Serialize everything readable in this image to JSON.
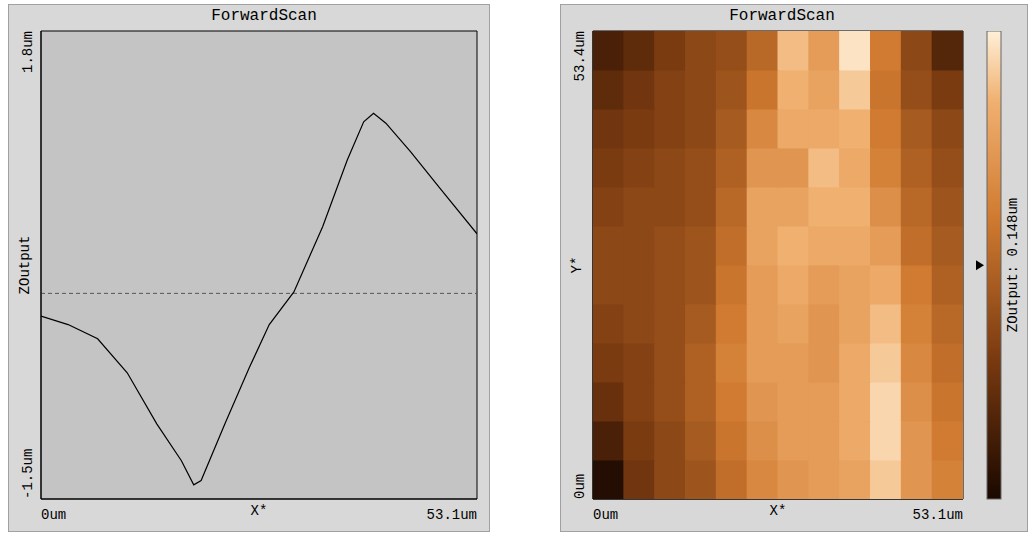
{
  "chart_data": [
    {
      "type": "line",
      "title": "ForwardScan",
      "x_label": "X*",
      "y_label": "ZOutput",
      "color": "#000000",
      "grid": false,
      "x": [
        0,
        3.3,
        6.9,
        10.5,
        14.1,
        17.1,
        18.6,
        19.5,
        22.4,
        25.4,
        27.8,
        30.8,
        34.3,
        37.3,
        39.3,
        40.5,
        42.0,
        45.0,
        48.6,
        53.1
      ],
      "values": [
        -0.21,
        -0.27,
        -0.37,
        -0.61,
        -0.97,
        -1.23,
        -1.4,
        -1.37,
        -0.97,
        -0.57,
        -0.27,
        -0.04,
        0.42,
        0.89,
        1.16,
        1.22,
        1.15,
        0.95,
        0.69,
        0.37
      ],
      "xlim": [
        0,
        53.1
      ],
      "xticks": [
        {
          "value": 0,
          "label": "0um"
        },
        {
          "value": 53.1,
          "label": "53.1um"
        }
      ],
      "ylim": [
        -1.5,
        1.8
      ],
      "yticks": [
        {
          "value": -1.5,
          "label": "-1.5um"
        },
        {
          "value": 1.8,
          "label": "1.8um"
        }
      ],
      "reference_line": -0.05
    },
    {
      "type": "heatmap",
      "title": "ForwardScan",
      "x_label": "X*",
      "y_label": "Y*",
      "xlim": [
        0,
        53.1
      ],
      "xticks": [
        {
          "value": 0,
          "label": "0um"
        },
        {
          "value": 53.1,
          "label": "53.1um"
        }
      ],
      "ylim": [
        0,
        53.4
      ],
      "yticks": [
        {
          "value": 0,
          "label": "0um"
        },
        {
          "value": 53.4,
          "label": "53.4um"
        }
      ],
      "cells": {
        "x": [
          2.21,
          6.64,
          11.06,
          15.49,
          19.91,
          24.34,
          28.76,
          33.19,
          37.61,
          42.04,
          46.46,
          50.89
        ],
        "y": [
          2.23,
          6.68,
          11.13,
          15.58,
          20.03,
          24.48,
          28.93,
          33.38,
          37.83,
          42.28,
          46.73,
          51.18
        ],
        "z": [
          [
            -1.4,
            -0.6,
            -0.3,
            -0.1,
            0.3,
            0.7,
            0.9,
            1.0,
            1.1,
            1.5,
            0.9,
            0.6
          ],
          [
            -1.0,
            -0.5,
            -0.3,
            0.0,
            0.4,
            0.8,
            1.0,
            1.0,
            1.2,
            1.6,
            0.9,
            0.5
          ],
          [
            -0.7,
            -0.4,
            -0.2,
            0.1,
            0.5,
            0.9,
            1.0,
            1.0,
            1.2,
            1.6,
            0.8,
            0.4
          ],
          [
            -0.5,
            -0.4,
            -0.2,
            0.1,
            0.6,
            1.0,
            1.0,
            0.9,
            1.2,
            1.5,
            0.7,
            0.3
          ],
          [
            -0.4,
            -0.3,
            -0.2,
            0.0,
            0.5,
            1.0,
            1.1,
            0.9,
            1.1,
            1.4,
            0.6,
            0.2
          ],
          [
            -0.3,
            -0.3,
            -0.2,
            -0.1,
            0.4,
            1.0,
            1.2,
            1.0,
            1.1,
            1.2,
            0.5,
            0.1
          ],
          [
            -0.3,
            -0.3,
            -0.2,
            -0.1,
            0.3,
            1.1,
            1.3,
            1.2,
            1.2,
            1.0,
            0.3,
            0.0
          ],
          [
            -0.4,
            -0.3,
            -0.3,
            -0.2,
            0.2,
            1.1,
            1.1,
            1.3,
            1.3,
            0.8,
            0.2,
            -0.1
          ],
          [
            -0.5,
            -0.4,
            -0.3,
            -0.2,
            0.1,
            0.9,
            0.9,
            1.4,
            1.2,
            0.6,
            0.1,
            -0.2
          ],
          [
            -0.6,
            -0.5,
            -0.4,
            -0.3,
            0.0,
            0.7,
            1.2,
            1.2,
            1.3,
            0.5,
            0.0,
            -0.3
          ],
          [
            -0.8,
            -0.6,
            -0.4,
            -0.3,
            -0.1,
            0.4,
            1.3,
            1.1,
            1.5,
            0.4,
            -0.2,
            -0.5
          ],
          [
            -1.0,
            -0.8,
            -0.5,
            -0.3,
            -0.2,
            0.2,
            1.4,
            1.0,
            1.7,
            0.5,
            -0.3,
            -0.9
          ]
        ]
      },
      "colorbar": {
        "range": [
          -1.5,
          1.8
        ],
        "label": "ZOutput: 0.148um",
        "pointer": 0.148
      }
    }
  ]
}
